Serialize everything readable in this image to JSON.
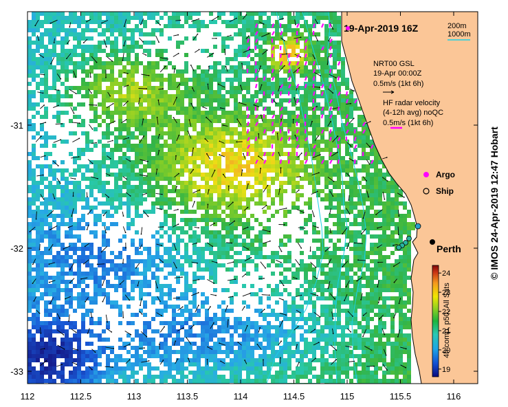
{
  "map": {
    "title": "19-Apr-2019 16Z",
    "lon_ticks": [
      "112",
      "112.5",
      "113",
      "113.5",
      "114",
      "114.5",
      "115",
      "115.5",
      "116"
    ],
    "lat_ticks": [
      "-31",
      "-32",
      "-33"
    ],
    "contour_legend": [
      "200m",
      "1000m"
    ],
    "contour_color": "#19d1e6",
    "land_color": "#fbc697",
    "gsl_label_1": "NRT00 GSL",
    "gsl_label_2": "19-Apr 00:00Z",
    "gsl_label_3": "0.5m/s (1kt 6h)",
    "hf_label_1": "HF radar velocity",
    "hf_label_2": "(4-12h avg) noQC",
    "hf_label_3": "0.5m/s (1kt 6h)",
    "argo_label": "Argo",
    "ship_label": "Ship",
    "city_label": "Perth",
    "colorbar": {
      "ticks": [
        "24",
        "23",
        "22",
        "21",
        "20",
        "19"
      ],
      "label": "4h comp, p50, All Sats",
      "range": [
        18.6,
        24.4
      ]
    },
    "credit": "© IMOS 24-Apr-2019 12:47 Hobart"
  }
}
